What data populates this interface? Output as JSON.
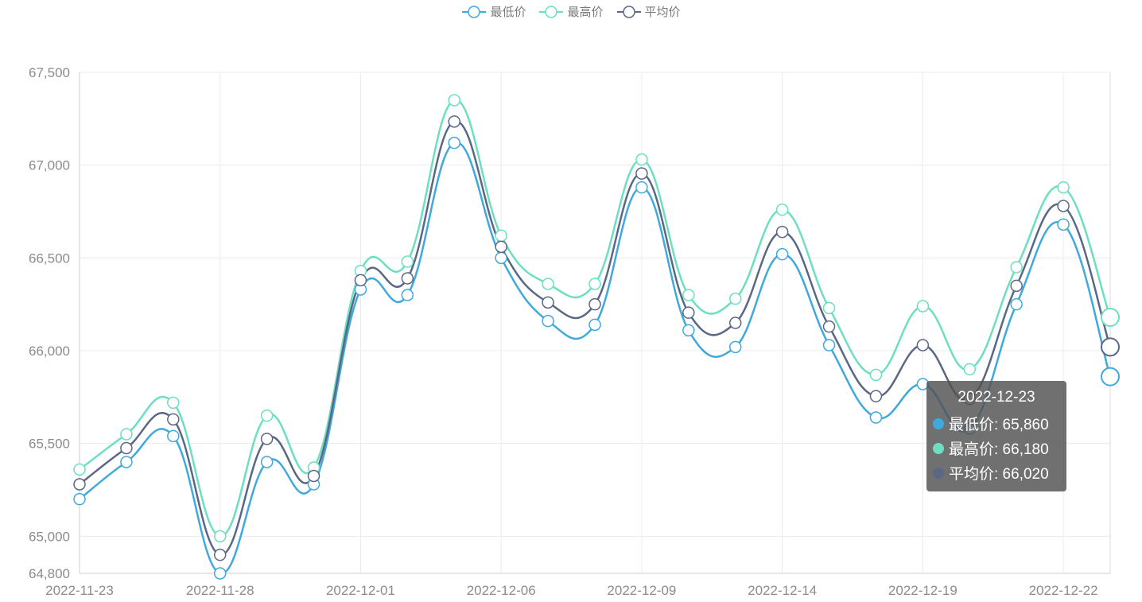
{
  "chart_data": {
    "type": "line",
    "smooth": true,
    "x": [
      "2022-11-23",
      "2022-11-24",
      "2022-11-25",
      "2022-11-28",
      "2022-11-29",
      "2022-11-30",
      "2022-12-01",
      "2022-12-02",
      "2022-12-05",
      "2022-12-06",
      "2022-12-07",
      "2022-12-08",
      "2022-12-09",
      "2022-12-12",
      "2022-12-13",
      "2022-12-14",
      "2022-12-15",
      "2022-12-16",
      "2022-12-19",
      "2022-12-20",
      "2022-12-21",
      "2022-12-22",
      "2022-12-23"
    ],
    "xtick_labels": [
      "2022-11-23",
      "2022-11-28",
      "2022-12-01",
      "2022-12-06",
      "2022-12-09",
      "2022-12-14",
      "2022-12-19",
      "2022-12-22"
    ],
    "ytick_labels": [
      "64,800",
      "65,000",
      "65,500",
      "66,000",
      "66,500",
      "67,000",
      "67,500"
    ],
    "yticks": [
      64800,
      65000,
      65500,
      66000,
      66500,
      67000,
      67500
    ],
    "ylim": [
      64800,
      67500
    ],
    "grid": true,
    "legend_position": "top-center",
    "series": [
      {
        "name": "最低价",
        "color": "#3fa9de",
        "values": [
          65200,
          65400,
          65540,
          64800,
          65400,
          65280,
          66330,
          66300,
          67120,
          66500,
          66160,
          66140,
          66880,
          66110,
          66020,
          66520,
          66030,
          65640,
          65820,
          65580,
          66250,
          66680,
          65860
        ]
      },
      {
        "name": "最高价",
        "color": "#6ddfc0",
        "values": [
          65360,
          65550,
          65720,
          65000,
          65650,
          65370,
          66430,
          66480,
          67350,
          66620,
          66360,
          66360,
          67030,
          66300,
          66280,
          66760,
          66230,
          65870,
          66240,
          65900,
          66450,
          66880,
          66180
        ]
      },
      {
        "name": "平均价",
        "color": "#5a6785",
        "values": [
          65280,
          65475,
          65630,
          64900,
          65525,
          65325,
          66380,
          66390,
          67235,
          66560,
          66260,
          66250,
          66955,
          66205,
          66150,
          66640,
          66130,
          65755,
          66030,
          65740,
          66350,
          66780,
          66020
        ]
      }
    ],
    "tooltip": {
      "title": "2022-12-23",
      "rows": [
        {
          "label": "最低价: 65,860",
          "color": "#3fa9de"
        },
        {
          "label": "最高价: 66,180",
          "color": "#6ddfc0"
        },
        {
          "label": "平均价: 66,020",
          "color": "#5a6785"
        }
      ]
    }
  }
}
